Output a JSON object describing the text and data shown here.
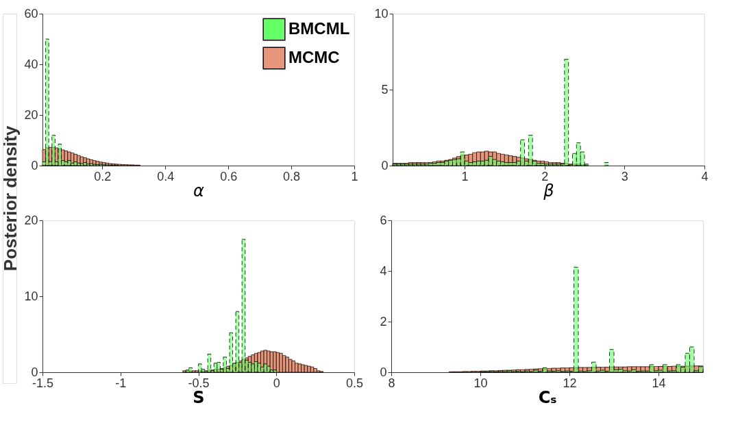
{
  "chart_data": [
    {
      "type": "histogram",
      "xlabel": "α",
      "ylabel": "Posterior density",
      "xlim": [
        0.01,
        1
      ],
      "xticks": [
        0.2,
        0.4,
        0.6,
        0.8,
        1
      ],
      "ylim": [
        0,
        60
      ],
      "yticks": [
        0,
        20,
        40,
        60
      ],
      "legend": "top right",
      "grid": false,
      "bins": [
        0.01,
        0.02,
        0.03,
        0.04,
        0.05,
        0.06,
        0.07,
        0.08,
        0.09,
        0.1,
        0.11,
        0.12,
        0.13,
        0.14,
        0.15,
        0.16,
        0.17,
        0.18,
        0.19,
        0.2,
        0.21,
        0.22,
        0.23,
        0.24,
        0.25,
        0.26,
        0.27,
        0.28,
        0.29,
        0.3,
        0.31,
        0.32,
        0.33,
        0.34,
        0.35,
        0.36
      ],
      "series": [
        {
          "name": "BMCML",
          "color": "#66ff66",
          "line_style": "dashed",
          "values": [
            1.5,
            50,
            1.5,
            12,
            1.5,
            8.5,
            2,
            1.5,
            2,
            1,
            1.5,
            1,
            0.8,
            1.2,
            0.6,
            0.8,
            0.5,
            0.4,
            0.5,
            0.3,
            0.3,
            0.2,
            0.2,
            0.2,
            null,
            null,
            null,
            null,
            null,
            null,
            null,
            null,
            null,
            null,
            null
          ]
        },
        {
          "name": "MCMC",
          "color": "#e8967a",
          "line_style": "solid",
          "values": [
            6.3,
            7.0,
            7.2,
            7.2,
            7.0,
            6.6,
            6.2,
            5.8,
            5.4,
            5.0,
            4.5,
            4.0,
            3.5,
            3.1,
            2.7,
            2.3,
            2.0,
            1.7,
            1.4,
            1.2,
            1.0,
            0.8,
            0.7,
            0.6,
            0.5,
            0.4,
            0.4,
            0.3,
            0.3,
            0.2,
            0.2,
            null,
            null,
            null,
            null
          ]
        }
      ]
    },
    {
      "type": "histogram",
      "xlabel": "β",
      "xlim": [
        0.1,
        4
      ],
      "xticks": [
        1,
        2,
        3,
        4
      ],
      "ylim": [
        0,
        10
      ],
      "yticks": [
        0,
        5,
        10
      ],
      "grid": false,
      "bins": [
        0.1,
        0.15,
        0.2,
        0.25,
        0.3,
        0.35,
        0.4,
        0.45,
        0.5,
        0.55,
        0.6,
        0.65,
        0.7,
        0.75,
        0.8,
        0.85,
        0.9,
        0.95,
        1.0,
        1.05,
        1.1,
        1.15,
        1.2,
        1.25,
        1.3,
        1.35,
        1.4,
        1.45,
        1.5,
        1.55,
        1.6,
        1.65,
        1.7,
        1.75,
        1.8,
        1.85,
        1.9,
        1.95,
        2.0,
        2.05,
        2.1,
        2.15,
        2.2,
        2.25,
        2.3,
        2.35,
        2.4,
        2.45,
        2.5,
        2.55,
        2.6,
        2.65,
        2.7,
        2.75,
        2.8
      ],
      "series": [
        {
          "color": "#66ff66",
          "line_style": "dashed",
          "values": [
            0.1,
            0.1,
            0.1,
            0.1,
            0.1,
            0.1,
            0.1,
            0.1,
            0.1,
            0.15,
            0.15,
            0.2,
            0.2,
            0.3,
            0.35,
            0.4,
            0.45,
            0.9,
            0.3,
            0.2,
            0.25,
            0.3,
            0.3,
            0.35,
            0.6,
            0.4,
            0.3,
            0.25,
            0.2,
            0.2,
            0.2,
            0.3,
            1.7,
            0.3,
            2.0,
            0.3,
            0.15,
            0.15,
            0.1,
            0.1,
            0.1,
            0.1,
            0.1,
            7.0,
            0.05,
            0.8,
            1.5,
            0.9,
            0.1,
            null,
            null,
            null,
            null,
            0.2
          ]
        },
        {
          "color": "#e8967a",
          "line_style": "solid",
          "values": [
            0.15,
            0.15,
            0.15,
            0.15,
            0.2,
            0.2,
            0.2,
            0.2,
            0.2,
            0.2,
            0.25,
            0.3,
            0.3,
            0.35,
            0.4,
            0.5,
            0.6,
            0.7,
            0.7,
            0.75,
            0.85,
            0.9,
            0.9,
            0.95,
            0.9,
            0.9,
            0.8,
            0.75,
            0.7,
            0.65,
            0.6,
            0.55,
            0.5,
            0.45,
            0.4,
            0.35,
            0.3,
            0.3,
            0.25,
            0.2,
            0.2,
            0.2,
            0.15,
            0.15,
            0.1,
            0.1,
            0.1,
            0.05,
            0.05,
            null,
            null,
            null,
            null,
            null
          ]
        }
      ]
    },
    {
      "type": "histogram",
      "xlabel": "S",
      "xlim": [
        -1.5,
        0.5
      ],
      "xticks": [
        -1.5,
        -1,
        -0.5,
        0,
        0.5
      ],
      "ylim": [
        0,
        20
      ],
      "yticks": [
        0,
        10,
        20
      ],
      "grid": false,
      "bins": [
        -0.6,
        -0.58,
        -0.56,
        -0.54,
        -0.52,
        -0.5,
        -0.48,
        -0.46,
        -0.44,
        -0.42,
        -0.4,
        -0.38,
        -0.36,
        -0.34,
        -0.32,
        -0.3,
        -0.28,
        -0.26,
        -0.24,
        -0.22,
        -0.2,
        -0.18,
        -0.16,
        -0.14,
        -0.12,
        -0.1,
        -0.08,
        -0.06,
        -0.04,
        -0.02,
        0,
        0.02,
        0.04,
        0.06,
        0.08,
        0.1,
        0.12,
        0.14,
        0.16,
        0.18,
        0.2,
        0.22,
        0.24,
        0.26,
        0.28,
        0.3
      ],
      "series": [
        {
          "color": "#66ff66",
          "line_style": "dashed",
          "values": [
            null,
            0.3,
            0.6,
            null,
            null,
            1.1,
            0.4,
            0.1,
            2.4,
            0.2,
            1.2,
            1.3,
            0.4,
            2.0,
            0.5,
            5.2,
            1.2,
            8.0,
            1.3,
            17.5,
            1.6,
            1.3,
            1.1,
            1.4,
            1.2,
            0.7,
            1.1,
            0.8,
            0.3,
            0.3,
            null,
            null,
            null,
            null,
            null,
            null,
            null,
            null,
            null,
            null,
            null,
            null,
            null,
            null,
            null
          ]
        },
        {
          "color": "#e8967a",
          "line_style": "solid",
          "values": [
            0.2,
            0.2,
            0.2,
            0.2,
            0.2,
            0.2,
            0.2,
            0.2,
            0.3,
            0.3,
            0.4,
            0.4,
            0.5,
            0.6,
            0.8,
            0.9,
            1.1,
            1.3,
            1.5,
            1.7,
            1.9,
            2.1,
            2.3,
            2.5,
            2.6,
            2.8,
            2.9,
            2.8,
            2.7,
            2.7,
            2.6,
            2.5,
            2.2,
            2.0,
            1.7,
            1.5,
            1.2,
            1.1,
            1.0,
            0.9,
            0.8,
            0.7,
            0.5,
            0.2,
            0.1
          ]
        }
      ]
    },
    {
      "type": "histogram",
      "xlabel": "Cₛ",
      "xlim": [
        8,
        15
      ],
      "xticks": [
        8,
        10,
        12,
        14
      ],
      "ylim": [
        0,
        6
      ],
      "yticks": [
        0,
        2,
        4,
        6
      ],
      "grid": false,
      "bins": [
        8,
        8.1,
        8.2,
        8.3,
        8.4,
        8.5,
        8.6,
        8.7,
        8.8,
        8.9,
        9,
        9.1,
        9.2,
        9.3,
        9.4,
        9.5,
        9.6,
        9.7,
        9.8,
        9.9,
        10,
        10.1,
        10.2,
        10.3,
        10.4,
        10.5,
        10.6,
        10.7,
        10.8,
        10.9,
        11,
        11.1,
        11.2,
        11.3,
        11.4,
        11.5,
        11.6,
        11.7,
        11.8,
        11.9,
        12,
        12.1,
        12.2,
        12.3,
        12.4,
        12.5,
        12.6,
        12.7,
        12.8,
        12.9,
        13,
        13.1,
        13.2,
        13.3,
        13.4,
        13.5,
        13.6,
        13.7,
        13.8,
        13.9,
        14,
        14.1,
        14.2,
        14.3,
        14.4,
        14.5,
        14.6,
        14.7,
        14.8,
        14.9,
        15
      ],
      "series": [
        {
          "color": "#66ff66",
          "line_style": "dashed",
          "values": [
            null,
            null,
            null,
            null,
            null,
            null,
            null,
            null,
            null,
            null,
            null,
            null,
            null,
            null,
            null,
            null,
            null,
            null,
            null,
            null,
            0.02,
            0.02,
            0.03,
            0.02,
            0.03,
            0.03,
            0.05,
            0.03,
            0.04,
            0.02,
            0.05,
            0.03,
            0.08,
            0.04,
            0.18,
            0.05,
            0.04,
            0.06,
            0.03,
            0.05,
            0.04,
            4.15,
            0.05,
            0.03,
            0.06,
            0.4,
            0.05,
            0.08,
            0.04,
            0.9,
            0.1,
            0.12,
            0.06,
            0.05,
            0.1,
            0.04,
            0.05,
            0.05,
            0.3,
            0.06,
            0.08,
            0.3,
            0.05,
            0.06,
            0.3,
            0.2,
            0.75,
            1.0,
            0.06,
            0.22
          ]
        },
        {
          "color": "#e8967a",
          "line_style": "solid",
          "values": [
            null,
            null,
            null,
            null,
            null,
            null,
            null,
            null,
            null,
            null,
            null,
            null,
            null,
            0.02,
            0.02,
            0.02,
            0.03,
            0.03,
            0.04,
            0.04,
            0.05,
            0.05,
            0.06,
            0.06,
            0.07,
            0.08,
            0.08,
            0.09,
            0.1,
            0.1,
            0.11,
            0.12,
            0.13,
            0.14,
            0.14,
            0.15,
            0.16,
            0.16,
            0.17,
            0.17,
            0.18,
            0.18,
            0.19,
            0.19,
            0.19,
            0.2,
            0.2,
            0.2,
            0.2,
            0.21,
            0.21,
            0.21,
            0.21,
            0.22,
            0.22,
            0.22,
            0.22,
            0.22,
            0.23,
            0.23,
            0.23,
            0.23,
            0.23,
            0.24,
            0.24,
            0.24,
            0.24,
            0.25,
            0.25,
            0.25
          ]
        }
      ]
    }
  ]
}
